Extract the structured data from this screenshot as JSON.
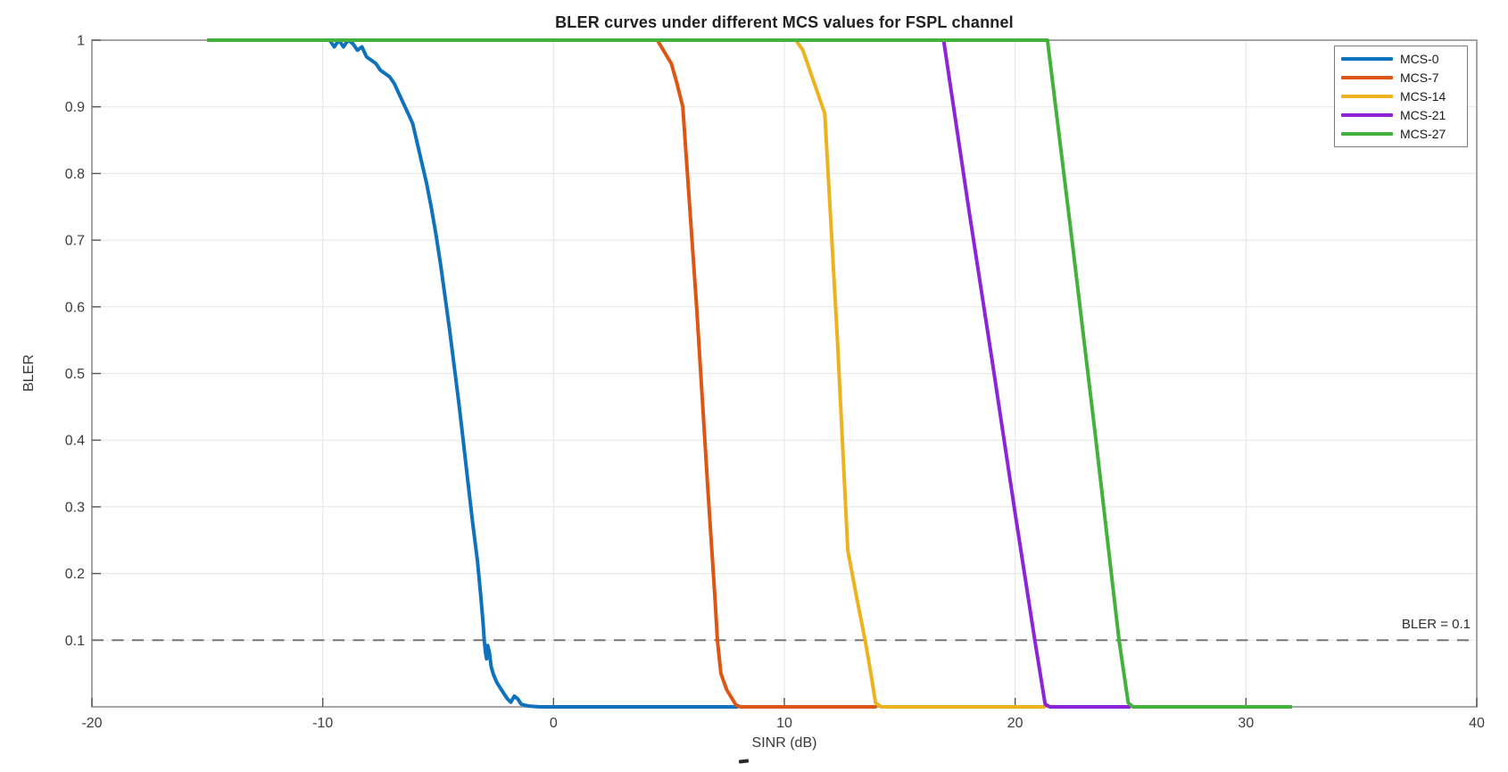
{
  "figure": {
    "title": "BLER curves under different MCS values for FSPL channel",
    "xlabel": "SINR (dB)",
    "ylabel": "BLER",
    "threshold_annotation": "BLER = 0.1",
    "background_color": "#ffffff"
  },
  "chart_data": {
    "type": "line",
    "title": "BLER curves under different MCS values for FSPL channel",
    "xlabel": "SINR (dB)",
    "ylabel": "BLER",
    "xlim": [
      -20,
      40
    ],
    "ylim": [
      0,
      1
    ],
    "xticks": [
      -20,
      -10,
      0,
      10,
      20,
      30,
      40
    ],
    "yticks": [
      0.1,
      0.2,
      0.3,
      0.4,
      0.5,
      0.6,
      0.7,
      0.8,
      0.9,
      1
    ],
    "grid": true,
    "legend_position": "top-right",
    "threshold": {
      "y": 0.1,
      "label": "BLER = 0.1",
      "style": "dashed",
      "color": "#6e6e6e"
    },
    "series": [
      {
        "name": "MCS-0",
        "color": "#0f72bd",
        "points": [
          [
            -15,
            1
          ],
          [
            -10,
            1
          ],
          [
            -9.7,
            1
          ],
          [
            -9.5,
            0.99
          ],
          [
            -9.3,
            1
          ],
          [
            -9.1,
            0.99
          ],
          [
            -8.9,
            1
          ],
          [
            -8.7,
            0.995
          ],
          [
            -8.5,
            0.985
          ],
          [
            -8.3,
            0.99
          ],
          [
            -8.1,
            0.975
          ],
          [
            -7.9,
            0.97
          ],
          [
            -7.7,
            0.965
          ],
          [
            -7.5,
            0.955
          ],
          [
            -7.3,
            0.95
          ],
          [
            -7.1,
            0.945
          ],
          [
            -6.9,
            0.935
          ],
          [
            -6.7,
            0.92
          ],
          [
            -6.5,
            0.905
          ],
          [
            -6.3,
            0.89
          ],
          [
            -6.1,
            0.875
          ],
          [
            -5.9,
            0.845
          ],
          [
            -5.7,
            0.815
          ],
          [
            -5.5,
            0.785
          ],
          [
            -5.3,
            0.75
          ],
          [
            -5.1,
            0.71
          ],
          [
            -4.9,
            0.665
          ],
          [
            -4.7,
            0.615
          ],
          [
            -4.5,
            0.565
          ],
          [
            -4.3,
            0.51
          ],
          [
            -4.1,
            0.455
          ],
          [
            -3.9,
            0.395
          ],
          [
            -3.7,
            0.335
          ],
          [
            -3.5,
            0.275
          ],
          [
            -3.3,
            0.22
          ],
          [
            -3.15,
            0.165
          ],
          [
            -3.05,
            0.125
          ],
          [
            -3,
            0.1
          ],
          [
            -2.95,
            0.082
          ],
          [
            -2.9,
            0.072
          ],
          [
            -2.85,
            0.092
          ],
          [
            -2.78,
            0.082
          ],
          [
            -2.7,
            0.06
          ],
          [
            -2.6,
            0.048
          ],
          [
            -2.45,
            0.036
          ],
          [
            -2.3,
            0.028
          ],
          [
            -2.15,
            0.02
          ],
          [
            -2,
            0.012
          ],
          [
            -1.85,
            0.007
          ],
          [
            -1.7,
            0.016
          ],
          [
            -1.55,
            0.012
          ],
          [
            -1.4,
            0.004
          ],
          [
            -1.2,
            0.002
          ],
          [
            -1,
            0.001
          ],
          [
            -0.6,
            0
          ],
          [
            8,
            0
          ]
        ]
      },
      {
        "name": "MCS-7",
        "color": "#dd5613",
        "points": [
          [
            -15,
            1
          ],
          [
            4.5,
            1
          ],
          [
            5.1,
            0.965
          ],
          [
            5.35,
            0.935
          ],
          [
            5.6,
            0.9
          ],
          [
            6.2,
            0.6
          ],
          [
            6.7,
            0.32
          ],
          [
            7,
            0.16
          ],
          [
            7.1,
            0.1
          ],
          [
            7.25,
            0.05
          ],
          [
            7.5,
            0.026
          ],
          [
            7.9,
            0.003
          ],
          [
            8.1,
            0
          ],
          [
            14,
            0
          ]
        ]
      },
      {
        "name": "MCS-14",
        "color": "#eeb21f",
        "points": [
          [
            -15,
            1
          ],
          [
            10.5,
            1
          ],
          [
            10.8,
            0.985
          ],
          [
            11.1,
            0.955
          ],
          [
            11.75,
            0.89
          ],
          [
            12.3,
            0.55
          ],
          [
            12.75,
            0.235
          ],
          [
            13.1,
            0.17
          ],
          [
            13.5,
            0.1
          ],
          [
            13.75,
            0.05
          ],
          [
            13.95,
            0.006
          ],
          [
            14.2,
            0
          ],
          [
            21.3,
            0
          ]
        ]
      },
      {
        "name": "MCS-21",
        "color": "#8e24d8",
        "points": [
          [
            -15,
            1
          ],
          [
            16.9,
            1
          ],
          [
            18,
            0.745
          ],
          [
            19,
            0.52
          ],
          [
            20,
            0.29
          ],
          [
            20.85,
            0.1
          ],
          [
            21.3,
            0.004
          ],
          [
            21.5,
            0
          ],
          [
            25,
            0
          ]
        ]
      },
      {
        "name": "MCS-27",
        "color": "#43b13c",
        "points": [
          [
            -15,
            1
          ],
          [
            21.4,
            1
          ],
          [
            22.5,
            0.69
          ],
          [
            23.5,
            0.4
          ],
          [
            24.5,
            0.1
          ],
          [
            24.9,
            0.006
          ],
          [
            25.1,
            0
          ],
          [
            32,
            0
          ]
        ]
      }
    ]
  }
}
